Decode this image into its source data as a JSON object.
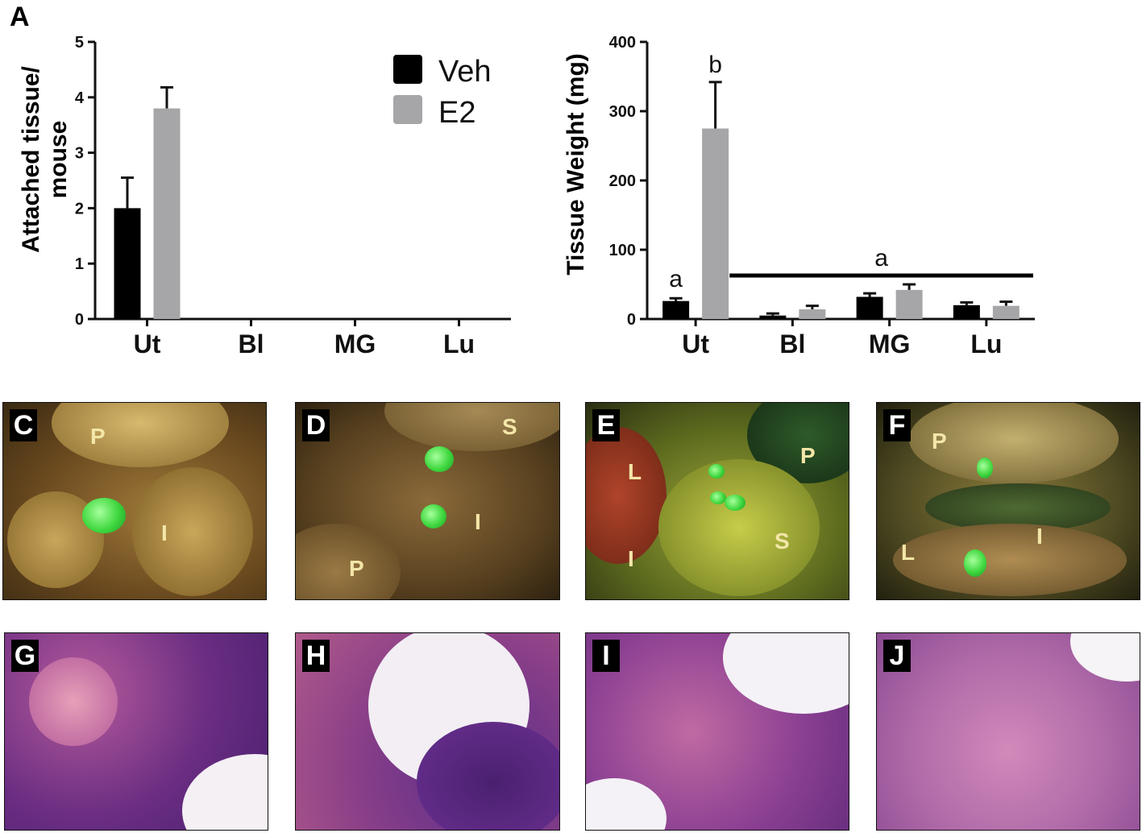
{
  "chart_data": [
    {
      "type": "bar",
      "panel": "A",
      "title": "",
      "xlabel": "",
      "ylabel": "Attached tissue/\nmouse",
      "ylim": [
        0,
        5
      ],
      "yticks": [
        "0",
        "1",
        "2",
        "3",
        "4",
        "5"
      ],
      "categories": [
        "Ut",
        "Bl",
        "MG",
        "Lu"
      ],
      "series": [
        {
          "name": "Veh",
          "color": "#000000",
          "values": [
            2.0,
            0,
            0,
            0
          ],
          "errors": [
            0.55,
            0,
            0,
            0
          ]
        },
        {
          "name": "E2",
          "color": "#a6a6a8",
          "values": [
            3.8,
            0,
            0,
            0
          ],
          "errors": [
            0.38,
            0,
            0,
            0
          ]
        }
      ],
      "legend": {
        "placement": "top-right",
        "entries": [
          "Veh",
          "E2"
        ]
      }
    },
    {
      "type": "bar",
      "panel": "B",
      "title": "",
      "xlabel": "",
      "ylabel": "Tissue Weight (mg)",
      "ylim": [
        0,
        400
      ],
      "yticks": [
        "0",
        "100",
        "200",
        "300",
        "400"
      ],
      "categories": [
        "Ut",
        "Bl",
        "MG",
        "Lu"
      ],
      "series": [
        {
          "name": "Veh",
          "color": "#000000",
          "values": [
            26,
            5,
            32,
            20
          ],
          "errors": [
            4,
            3,
            5,
            4
          ]
        },
        {
          "name": "E2",
          "color": "#a6a6a8",
          "values": [
            275,
            14,
            42,
            19
          ],
          "errors": [
            67,
            5,
            8,
            6
          ]
        }
      ],
      "annotations": {
        "ut_veh": "a",
        "ut_e2": "b",
        "group": "a"
      }
    }
  ],
  "photo_panels": [
    {
      "tag": "C",
      "labels": [
        "P",
        "I"
      ]
    },
    {
      "tag": "D",
      "labels": [
        "S",
        "I",
        "P"
      ]
    },
    {
      "tag": "E",
      "labels": [
        "L",
        "P",
        "S",
        "I"
      ]
    },
    {
      "tag": "F",
      "labels": [
        "P",
        "L",
        "I"
      ]
    }
  ],
  "histology_panels": [
    {
      "tag": "G"
    },
    {
      "tag": "H"
    },
    {
      "tag": "I"
    },
    {
      "tag": "J"
    }
  ]
}
